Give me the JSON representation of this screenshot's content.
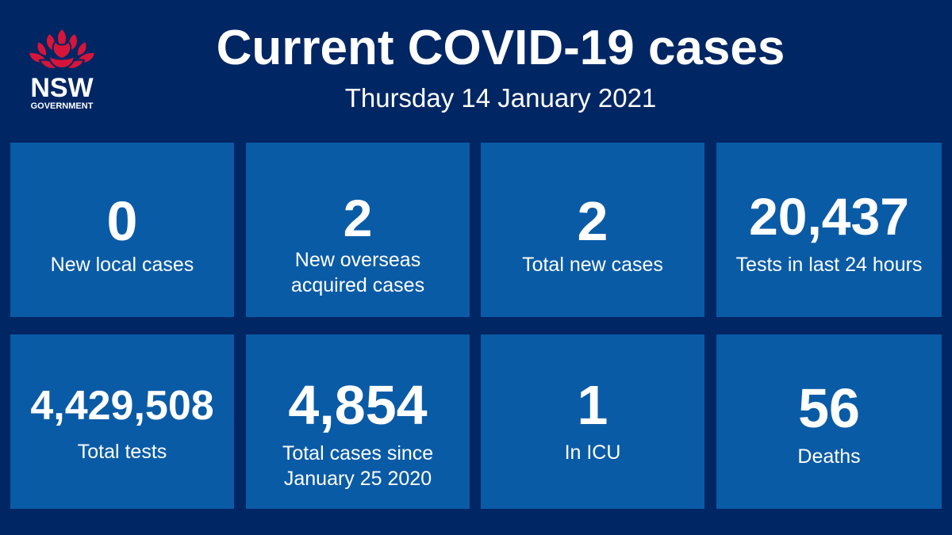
{
  "logo": {
    "name": "NSW",
    "subtitle": "GOVERNMENT",
    "colors": {
      "petal": "#d7153a",
      "background": "#002664"
    }
  },
  "header": {
    "title": "Current COVID-19 cases",
    "date": "Thursday 14 January 2021"
  },
  "colors": {
    "background": "#002664",
    "tile": "#0a5ba6",
    "text": "#ffffff"
  },
  "stats": [
    {
      "value": "0",
      "label_lines": [
        "New local cases"
      ]
    },
    {
      "value": "2",
      "label_lines": [
        "New overseas",
        "acquired cases"
      ]
    },
    {
      "value": "2",
      "label_lines": [
        "Total new cases"
      ]
    },
    {
      "value": "20,437",
      "label_lines": [
        "Tests in last 24 hours"
      ]
    },
    {
      "value": "4,429,508",
      "label_lines": [
        "Total tests"
      ]
    },
    {
      "value": "4,854",
      "label_lines": [
        "Total cases since",
        "January 25 2020"
      ]
    },
    {
      "value": "1",
      "label_lines": [
        "In ICU"
      ]
    },
    {
      "value": "56",
      "label_lines": [
        "Deaths"
      ]
    }
  ]
}
